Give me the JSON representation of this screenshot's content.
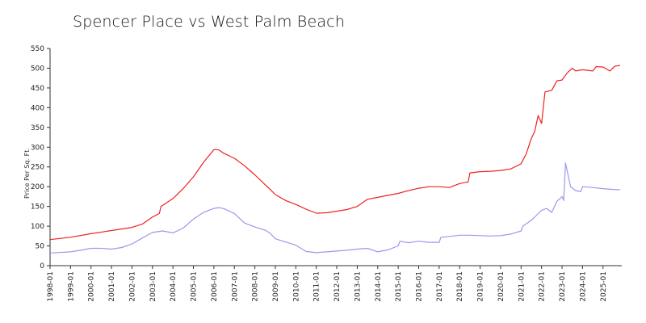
{
  "chart_data": {
    "type": "line",
    "title": "Spencer Place vs West Palm Beach",
    "ylabel": "Price Per Sq. Ft.",
    "xlabel": "",
    "ylim": [
      0,
      550
    ],
    "yticks": [
      0,
      50,
      100,
      150,
      200,
      250,
      300,
      350,
      400,
      450,
      500,
      550
    ],
    "xlim": [
      "1998-01",
      "2025-12"
    ],
    "xticks": [
      "1998-01",
      "1999-01",
      "2000-01",
      "2001-01",
      "2002-01",
      "2003-01",
      "2004-01",
      "2005-01",
      "2006-01",
      "2007-01",
      "2008-01",
      "2009-01",
      "2010-01",
      "2011-01",
      "2012-01",
      "2013-01",
      "2014-01",
      "2015-01",
      "2016-01",
      "2017-01",
      "2018-01",
      "2019-01",
      "2020-01",
      "2021-01",
      "2022-01",
      "2023-01",
      "2024-01",
      "2025-01"
    ],
    "grid": false,
    "legend": "none",
    "series": [
      {
        "color": "#ee2222",
        "points": [
          [
            "1998-01",
            66
          ],
          [
            "1999-01",
            72
          ],
          [
            "2000-01",
            81
          ],
          [
            "2001-01",
            89
          ],
          [
            "2002-01",
            97
          ],
          [
            "2002-07",
            105
          ],
          [
            "2003-01",
            123
          ],
          [
            "2003-05",
            132
          ],
          [
            "2003-06",
            150
          ],
          [
            "2004-01",
            170
          ],
          [
            "2004-07",
            195
          ],
          [
            "2005-01",
            225
          ],
          [
            "2005-07",
            262
          ],
          [
            "2006-01",
            294
          ],
          [
            "2006-04",
            293
          ],
          [
            "2006-07",
            284
          ],
          [
            "2007-01",
            272
          ],
          [
            "2007-07",
            253
          ],
          [
            "2008-01",
            230
          ],
          [
            "2008-07",
            205
          ],
          [
            "2008-10",
            193
          ],
          [
            "2009-01",
            180
          ],
          [
            "2009-07",
            165
          ],
          [
            "2010-01",
            155
          ],
          [
            "2010-07",
            143
          ],
          [
            "2011-01",
            133
          ],
          [
            "2011-07",
            134
          ],
          [
            "2012-01",
            138
          ],
          [
            "2012-07",
            142
          ],
          [
            "2013-01",
            150
          ],
          [
            "2013-07",
            168
          ],
          [
            "2014-01",
            173
          ],
          [
            "2014-07",
            178
          ],
          [
            "2015-01",
            183
          ],
          [
            "2015-07",
            190
          ],
          [
            "2016-01",
            196
          ],
          [
            "2016-07",
            200
          ],
          [
            "2017-01",
            200
          ],
          [
            "2017-07",
            198
          ],
          [
            "2018-01",
            208
          ],
          [
            "2018-06",
            212
          ],
          [
            "2018-07",
            235
          ],
          [
            "2019-01",
            238
          ],
          [
            "2019-07",
            239
          ],
          [
            "2020-01",
            241
          ],
          [
            "2020-07",
            245
          ],
          [
            "2021-01",
            258
          ],
          [
            "2021-04",
            283
          ],
          [
            "2021-07",
            322
          ],
          [
            "2021-09",
            340
          ],
          [
            "2021-11",
            380
          ],
          [
            "2022-01",
            360
          ],
          [
            "2022-03",
            440
          ],
          [
            "2022-07",
            444
          ],
          [
            "2022-10",
            468
          ],
          [
            "2023-01",
            470
          ],
          [
            "2023-04",
            488
          ],
          [
            "2023-07",
            500
          ],
          [
            "2023-09",
            493
          ],
          [
            "2024-01",
            496
          ],
          [
            "2024-07",
            493
          ],
          [
            "2024-09",
            504
          ],
          [
            "2025-01",
            503
          ],
          [
            "2025-05",
            493
          ],
          [
            "2025-08",
            505
          ],
          [
            "2025-11",
            507
          ]
        ]
      },
      {
        "color": "#9999ee",
        "points": [
          [
            "1998-01",
            32
          ],
          [
            "1999-01",
            35
          ],
          [
            "1999-07",
            39
          ],
          [
            "2000-01",
            44
          ],
          [
            "2000-07",
            44
          ],
          [
            "2001-01",
            42
          ],
          [
            "2001-07",
            46
          ],
          [
            "2002-01",
            55
          ],
          [
            "2002-07",
            70
          ],
          [
            "2003-01",
            84
          ],
          [
            "2003-07",
            88
          ],
          [
            "2004-01",
            83
          ],
          [
            "2004-07",
            95
          ],
          [
            "2005-01",
            118
          ],
          [
            "2005-07",
            135
          ],
          [
            "2006-01",
            145
          ],
          [
            "2006-04",
            147
          ],
          [
            "2006-07",
            144
          ],
          [
            "2007-01",
            132
          ],
          [
            "2007-07",
            108
          ],
          [
            "2008-01",
            98
          ],
          [
            "2008-07",
            90
          ],
          [
            "2008-10",
            82
          ],
          [
            "2009-01",
            68
          ],
          [
            "2009-07",
            60
          ],
          [
            "2010-01",
            52
          ],
          [
            "2010-07",
            36
          ],
          [
            "2011-01",
            33
          ],
          [
            "2011-07",
            35
          ],
          [
            "2012-01",
            37
          ],
          [
            "2012-07",
            39
          ],
          [
            "2013-01",
            42
          ],
          [
            "2013-07",
            44
          ],
          [
            "2014-01",
            35
          ],
          [
            "2014-07",
            40
          ],
          [
            "2015-01",
            50
          ],
          [
            "2015-02",
            62
          ],
          [
            "2015-07",
            58
          ],
          [
            "2016-01",
            62
          ],
          [
            "2016-07",
            59
          ],
          [
            "2017-01",
            59
          ],
          [
            "2017-02",
            72
          ],
          [
            "2017-07",
            74
          ],
          [
            "2018-01",
            77
          ],
          [
            "2018-07",
            77
          ],
          [
            "2019-01",
            76
          ],
          [
            "2019-07",
            75
          ],
          [
            "2020-01",
            76
          ],
          [
            "2020-07",
            80
          ],
          [
            "2021-01",
            88
          ],
          [
            "2021-02",
            100
          ],
          [
            "2021-07",
            115
          ],
          [
            "2022-01",
            140
          ],
          [
            "2022-04",
            145
          ],
          [
            "2022-07",
            135
          ],
          [
            "2022-10",
            163
          ],
          [
            "2023-01",
            175
          ],
          [
            "2023-02",
            165
          ],
          [
            "2023-03",
            260
          ],
          [
            "2023-06",
            200
          ],
          [
            "2023-09",
            190
          ],
          [
            "2023-12",
            188
          ],
          [
            "2024-01",
            200
          ],
          [
            "2024-07",
            198
          ],
          [
            "2025-01",
            195
          ],
          [
            "2025-07",
            193
          ],
          [
            "2025-11",
            192
          ]
        ]
      }
    ]
  }
}
